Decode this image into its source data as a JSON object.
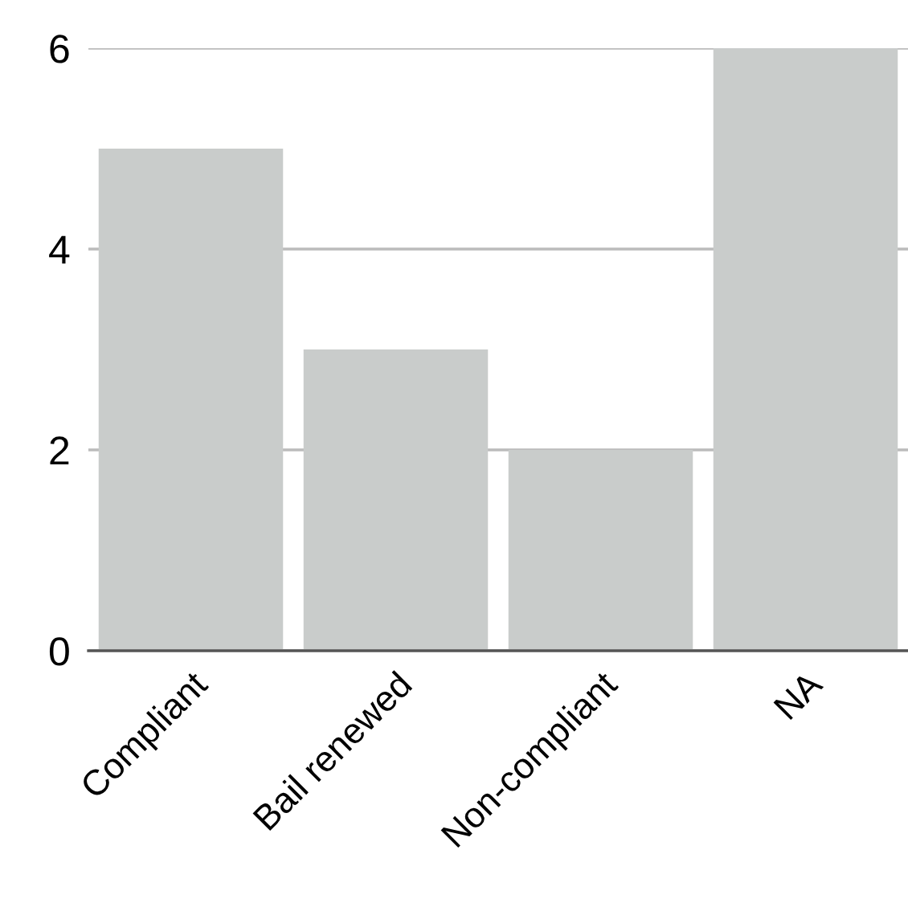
{
  "chart_data": {
    "type": "bar",
    "categories": [
      "Compliant",
      "Bail renewed",
      "Non-compliant",
      "NA"
    ],
    "values": [
      5,
      3,
      2,
      6
    ],
    "color": "#c9cccb",
    "ylim": [
      0,
      6
    ],
    "yticks": [
      0,
      2,
      4,
      6
    ],
    "grid": "y"
  }
}
